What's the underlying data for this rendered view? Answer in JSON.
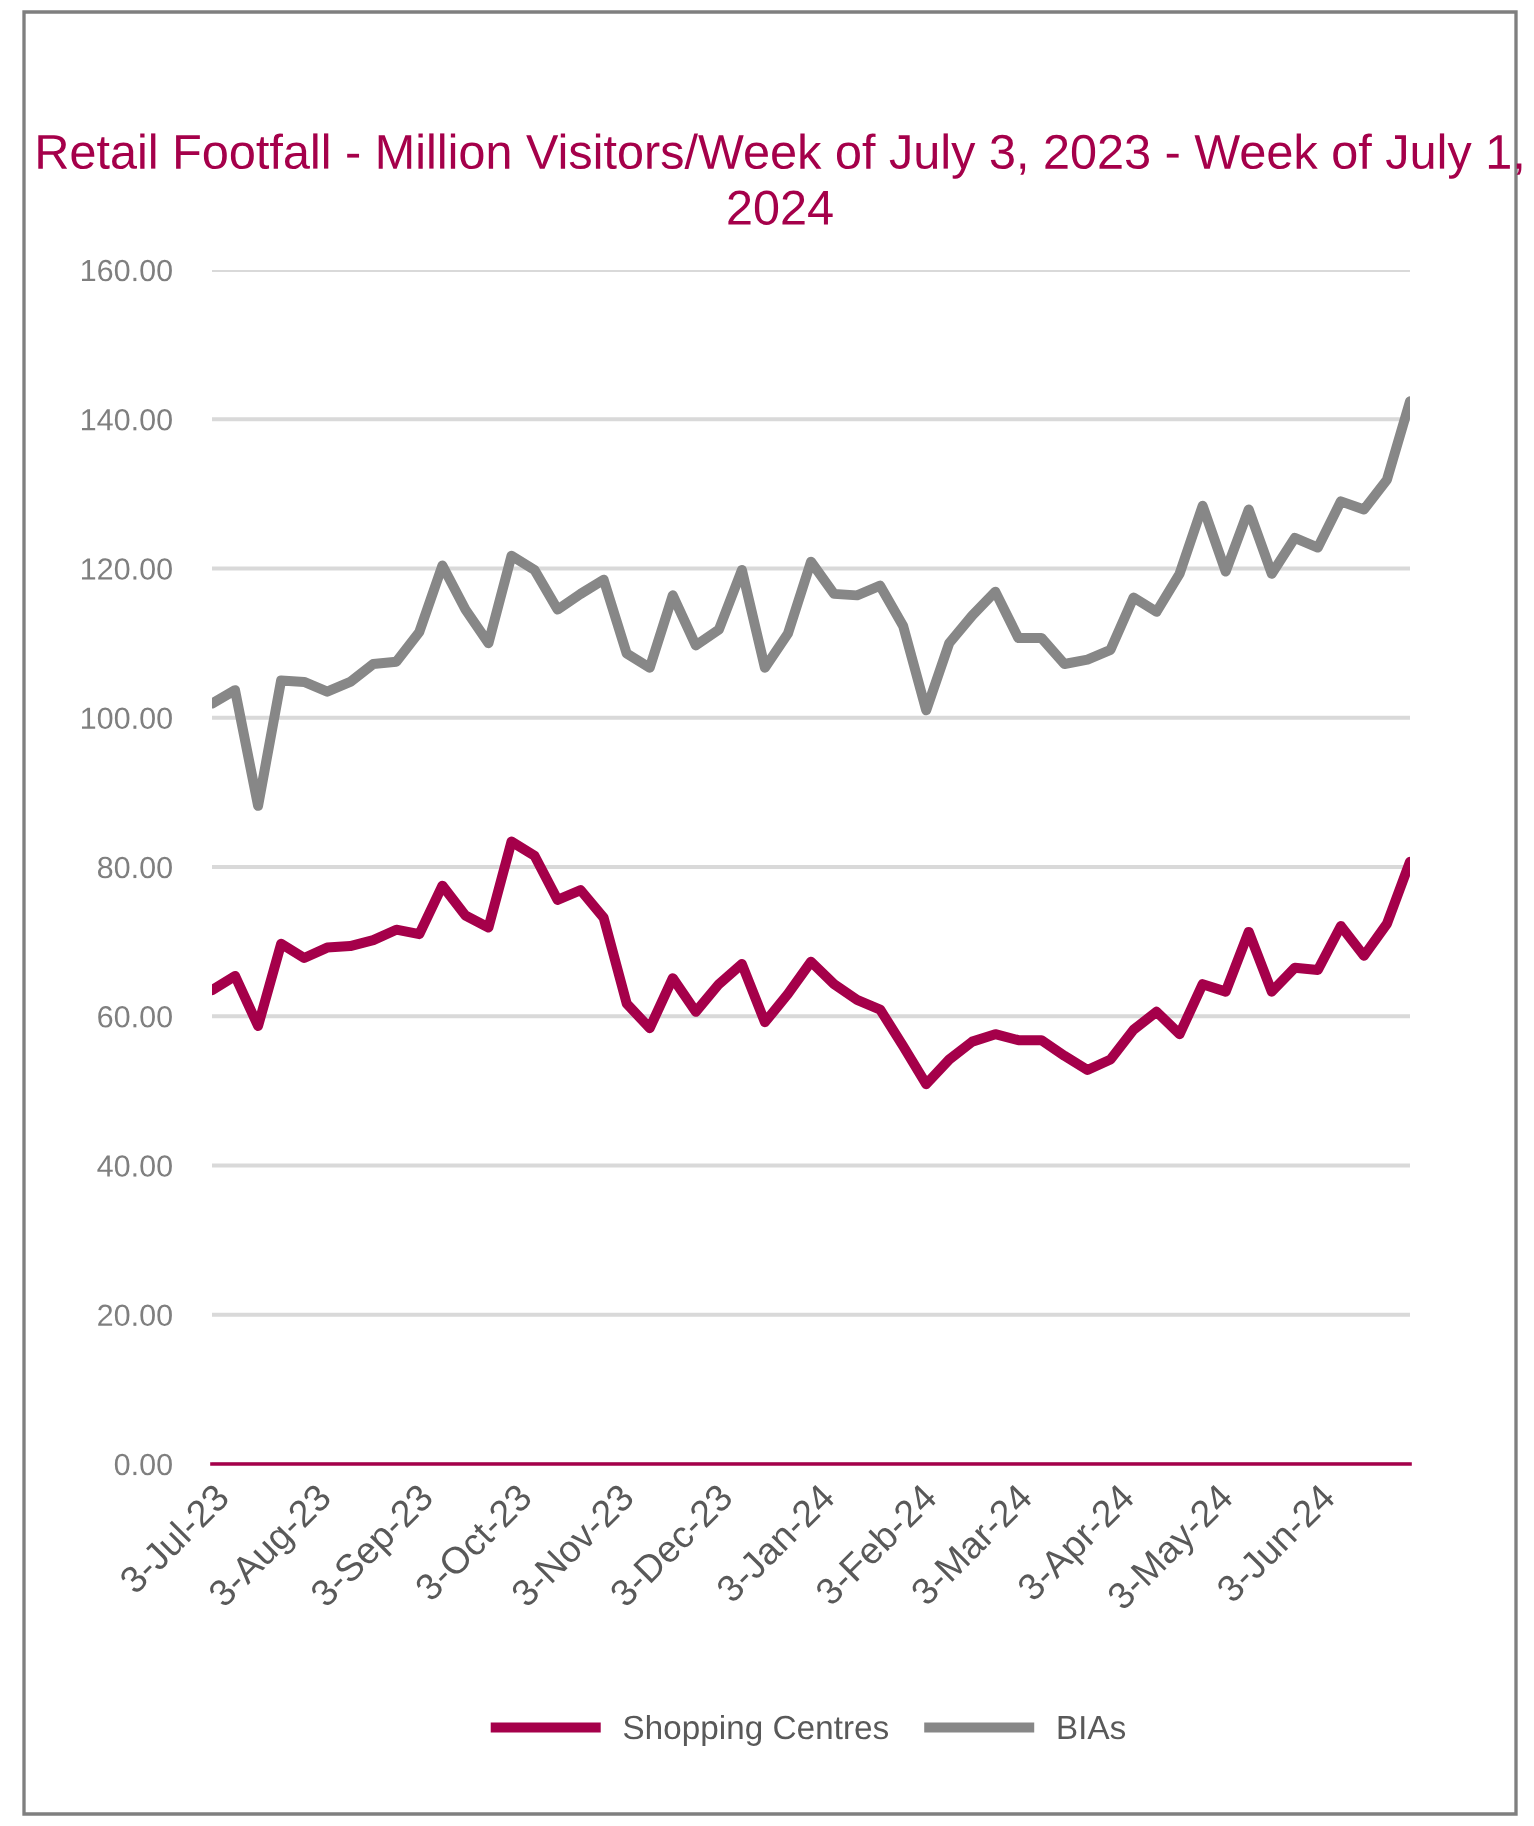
{
  "chart_data": {
    "type": "line",
    "title": "Retail Footfall - Million Visitors/Week of July 3, 2023 - Week of July 1, 2024",
    "x": [
      "2023-07-03",
      "2023-07-10",
      "2023-07-17",
      "2023-07-24",
      "2023-07-31",
      "2023-08-07",
      "2023-08-14",
      "2023-08-21",
      "2023-08-28",
      "2023-09-04",
      "2023-09-11",
      "2023-09-18",
      "2023-09-25",
      "2023-10-02",
      "2023-10-09",
      "2023-10-16",
      "2023-10-23",
      "2023-10-30",
      "2023-11-06",
      "2023-11-13",
      "2023-11-20",
      "2023-11-27",
      "2023-12-04",
      "2023-12-11",
      "2023-12-18",
      "2023-12-25",
      "2024-01-01",
      "2024-01-08",
      "2024-01-15",
      "2024-01-22",
      "2024-01-29",
      "2024-02-05",
      "2024-02-12",
      "2024-02-19",
      "2024-02-26",
      "2024-03-04",
      "2024-03-11",
      "2024-03-18",
      "2024-03-25",
      "2024-04-01",
      "2024-04-08",
      "2024-04-15",
      "2024-04-22",
      "2024-04-29",
      "2024-05-06",
      "2024-05-13",
      "2024-05-20",
      "2024-05-27",
      "2024-06-03",
      "2024-06-10",
      "2024-06-17",
      "2024-06-24",
      "2024-07-01"
    ],
    "series": [
      {
        "name": "Shopping Centres",
        "color": "#a5004a",
        "values": [
          63.5,
          65.4,
          58.7,
          69.7,
          67.8,
          69.2,
          69.4,
          70.2,
          71.6,
          71.0,
          77.5,
          73.5,
          71.9,
          83.4,
          81.5,
          75.6,
          76.9,
          73.2,
          61.7,
          58.4,
          65.1,
          60.6,
          64.3,
          67.0,
          59.2,
          63.0,
          67.3,
          64.3,
          62.2,
          60.9,
          56.0,
          50.9,
          54.2,
          56.6,
          57.6,
          56.8,
          56.8,
          54.7,
          52.8,
          54.2,
          58.2,
          60.6,
          57.6,
          64.3,
          63.3,
          71.3,
          63.3,
          66.5,
          66.2,
          72.1,
          68.1,
          72.4,
          80.7
        ]
      },
      {
        "name": "BIAs",
        "color": "#878787",
        "values": [
          101.9,
          103.7,
          88.2,
          105.0,
          104.8,
          103.5,
          104.8,
          107.2,
          107.5,
          111.5,
          120.4,
          114.5,
          110.0,
          121.7,
          119.8,
          114.5,
          116.6,
          118.5,
          108.6,
          106.7,
          116.4,
          109.7,
          111.8,
          119.8,
          106.7,
          111.3,
          120.9,
          116.6,
          116.4,
          117.7,
          112.3,
          101.0,
          110.0,
          113.7,
          116.9,
          110.7,
          110.7,
          107.2,
          107.8,
          109.1,
          116.1,
          114.2,
          119.3,
          128.4,
          119.6,
          127.9,
          119.3,
          124.1,
          122.8,
          129.0,
          127.9,
          131.9,
          142.4
        ]
      }
    ],
    "xlim": [
      "2023-07-03",
      "2024-07-01"
    ],
    "xticks": [
      {
        "value": "2023-07-03",
        "label": "3-Jul-23"
      },
      {
        "value": "2023-08-03",
        "label": "3-Aug-23"
      },
      {
        "value": "2023-09-03",
        "label": "3-Sep-23"
      },
      {
        "value": "2023-10-03",
        "label": "3-Oct-23"
      },
      {
        "value": "2023-11-03",
        "label": "3-Nov-23"
      },
      {
        "value": "2023-12-03",
        "label": "3-Dec-23"
      },
      {
        "value": "2024-01-03",
        "label": "3-Jan-24"
      },
      {
        "value": "2024-02-03",
        "label": "3-Feb-24"
      },
      {
        "value": "2024-03-03",
        "label": "3-Mar-24"
      },
      {
        "value": "2024-04-03",
        "label": "3-Apr-24"
      },
      {
        "value": "2024-05-03",
        "label": "3-May-24"
      },
      {
        "value": "2024-06-03",
        "label": "3-Jun-24"
      }
    ],
    "ylim": [
      0,
      160
    ],
    "yticks": [
      {
        "value": 0,
        "label": "0.00"
      },
      {
        "value": 20,
        "label": "20.00"
      },
      {
        "value": 40,
        "label": "40.00"
      },
      {
        "value": 60,
        "label": "60.00"
      },
      {
        "value": 80,
        "label": "80.00"
      },
      {
        "value": 100,
        "label": "100.00"
      },
      {
        "value": 120,
        "label": "120.00"
      },
      {
        "value": 140,
        "label": "140.00"
      },
      {
        "value": 160,
        "label": "160.00"
      }
    ],
    "grid": "y",
    "legend": "bottom",
    "marker": "none",
    "line_style": "solid"
  }
}
